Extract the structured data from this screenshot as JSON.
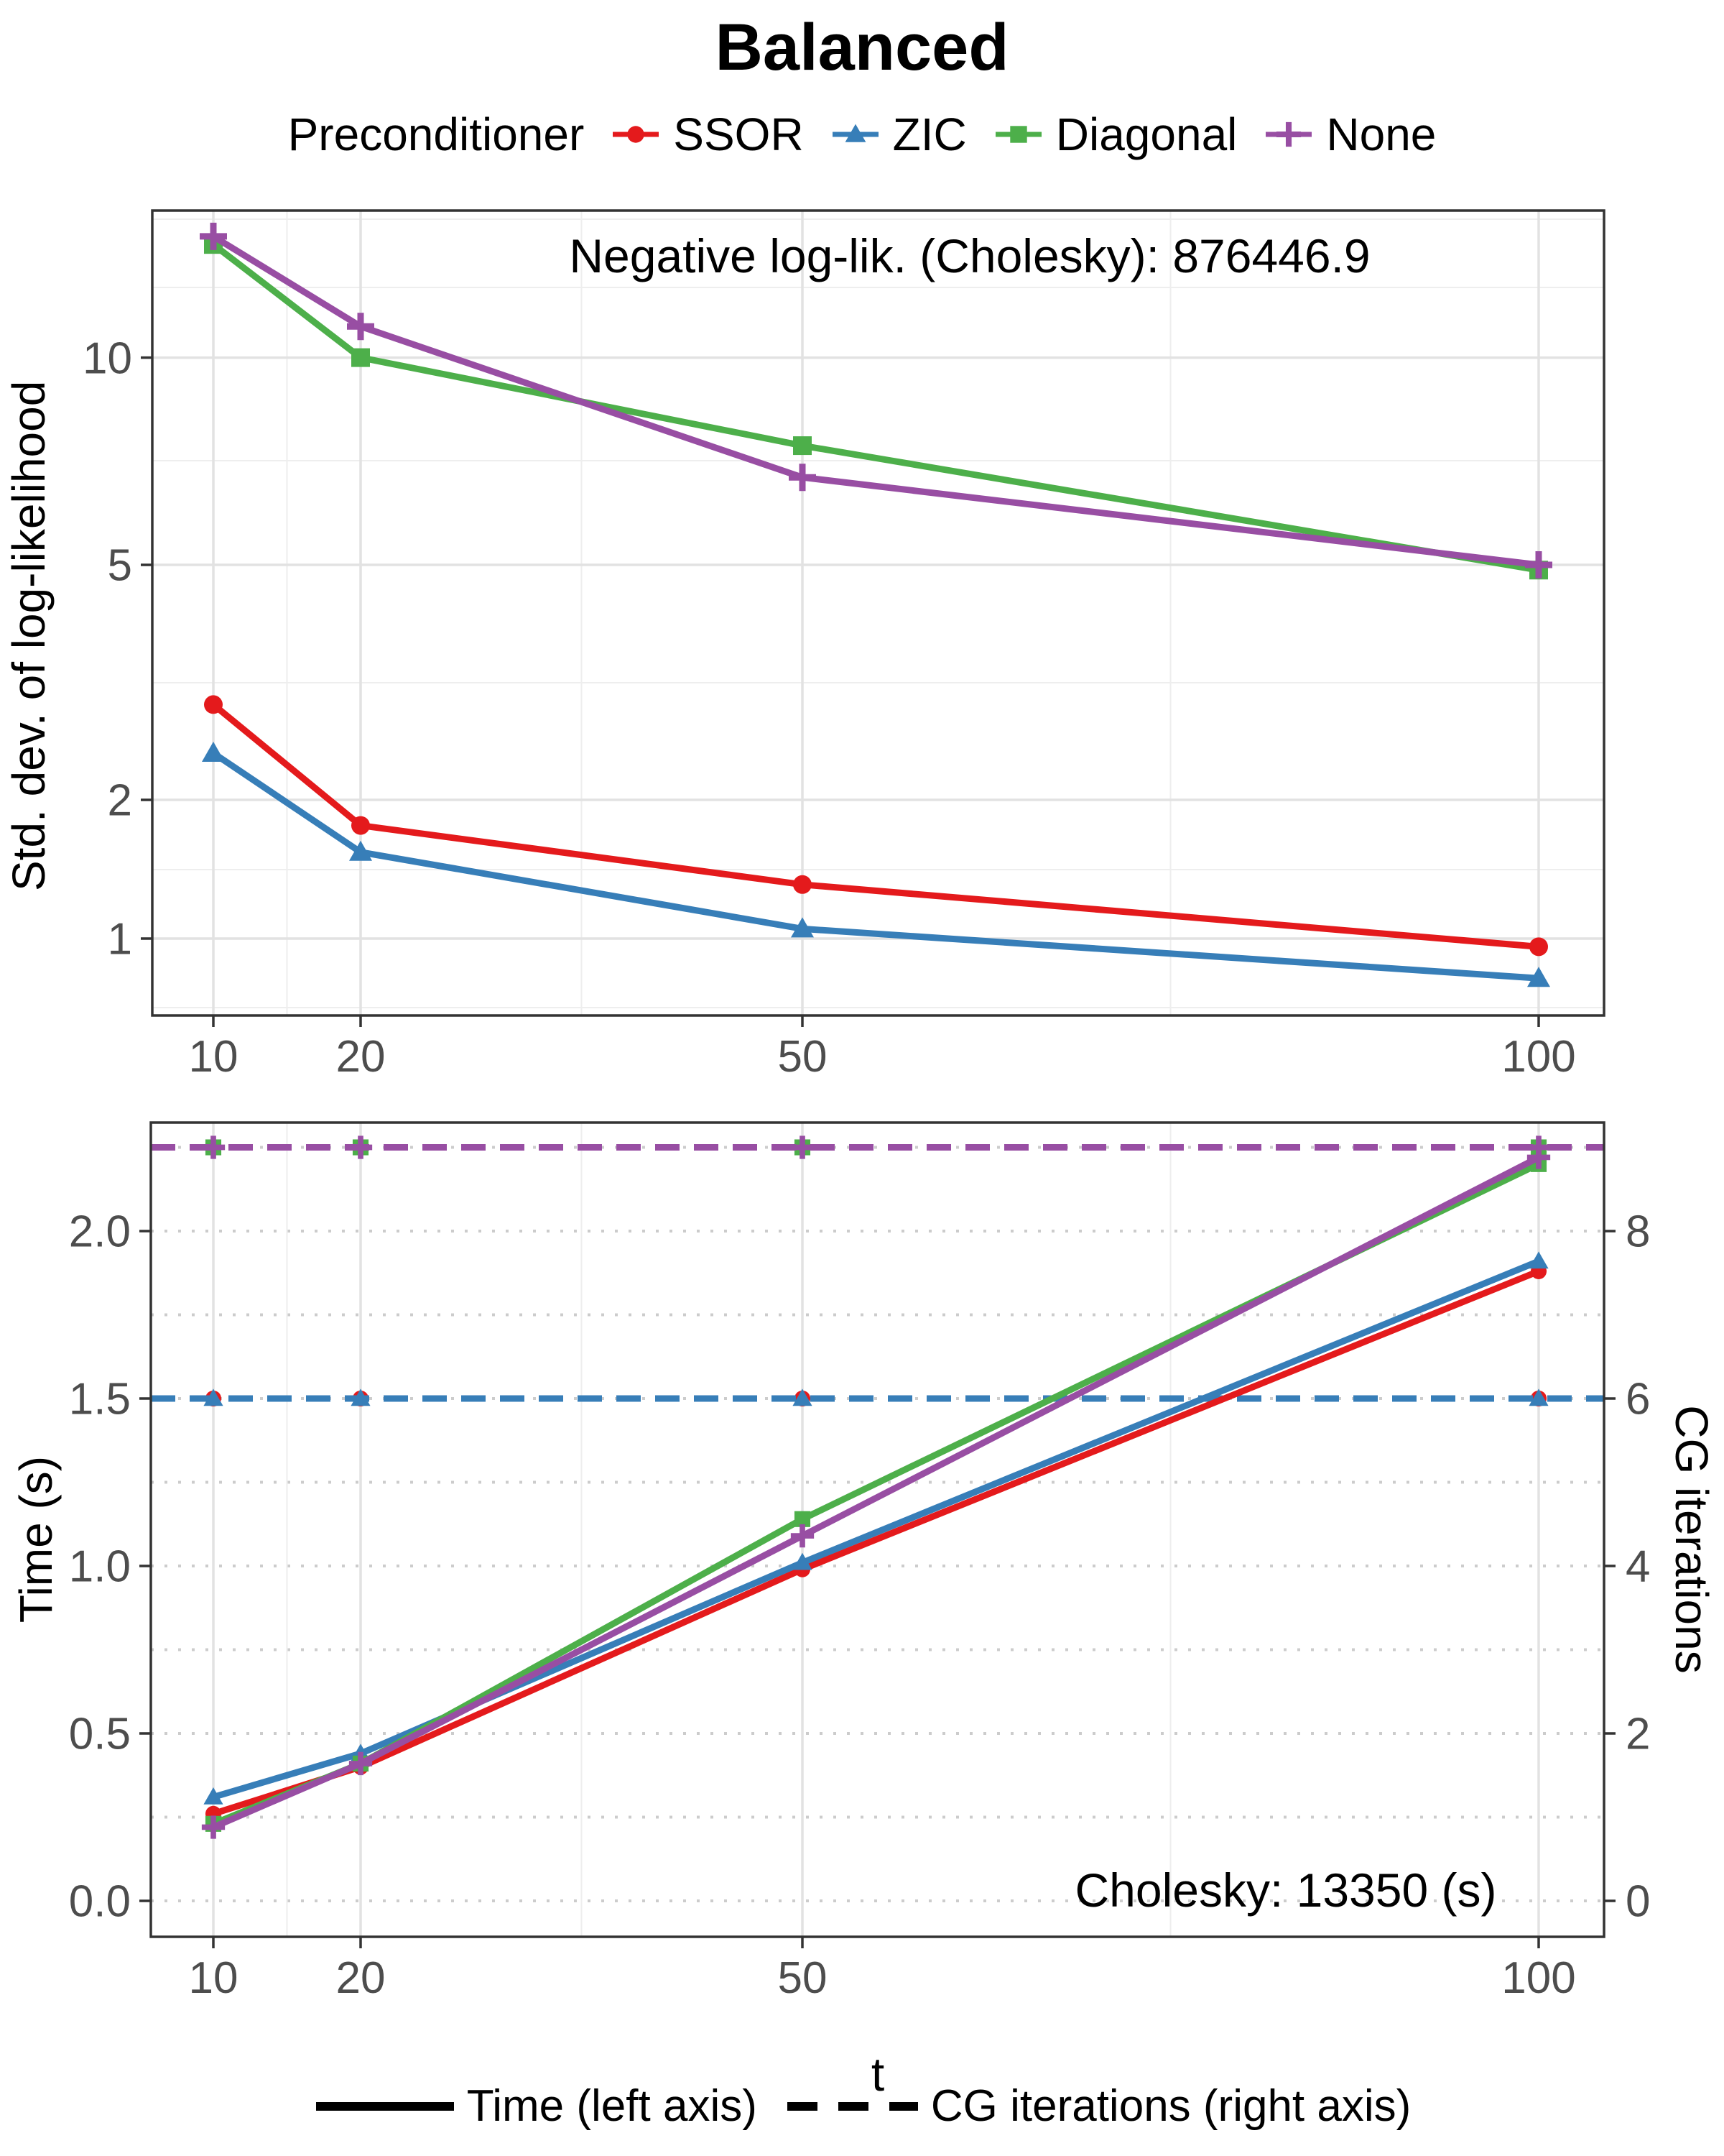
{
  "ui": {
    "title": "Balanced",
    "legend": {
      "label": "Preconditioner",
      "entries": [
        {
          "label": "SSOR",
          "color": "#E41A1C",
          "marker": "circle"
        },
        {
          "label": "ZIC",
          "color": "#377EB8",
          "marker": "triangle"
        },
        {
          "label": "Diagonal",
          "color": "#4DAF4A",
          "marker": "square"
        },
        {
          "label": "None",
          "color": "#984EA3",
          "marker": "plus"
        }
      ]
    },
    "top_panel": {
      "annotation": "Negative log-lik. (Cholesky): 876446.9",
      "ylabel": "Std. dev. of log-likelihood",
      "y_tick_labels": [
        "10",
        "5",
        "2",
        "1"
      ],
      "x_tick_labels": [
        "10",
        "20",
        "50",
        "100"
      ]
    },
    "bottom_panel": {
      "annotation": "Cholesky: 13350 (s)",
      "ylabel_left": "Time (s)",
      "ylabel_right": "CG iterations",
      "xlabel": "t",
      "left_tick_labels": [
        "0.0",
        "0.5",
        "1.0",
        "1.5",
        "2.0"
      ],
      "right_tick_labels": [
        "0",
        "2",
        "4",
        "6",
        "8"
      ],
      "x_tick_labels": [
        "10",
        "20",
        "50",
        "100"
      ],
      "legend": {
        "solid_label": "Time (left axis)",
        "dashed_label": "CG iterations (right axis)"
      }
    }
  },
  "chart_data": [
    {
      "type": "line",
      "title": "Balanced",
      "x": [
        10,
        20,
        50,
        100
      ],
      "x_ticks": [
        10,
        20,
        50,
        100
      ],
      "x_minor_ticks": [
        15,
        35,
        75
      ],
      "xlabel": "",
      "ylabel": "Std. dev. of log-likelihood",
      "yscale": "log-like",
      "y_ticks": [
        10,
        5,
        2,
        1
      ],
      "legend_title": "Preconditioner",
      "legend_position": "top",
      "grid": true,
      "annotation": "Negative log-lik. (Cholesky): 876446.9",
      "series": [
        {
          "name": "SSOR",
          "color": "#E41A1C",
          "marker": "circle",
          "values": [
            2.9,
            1.76,
            1.31,
            0.96
          ]
        },
        {
          "name": "ZIC",
          "color": "#377EB8",
          "marker": "triangle",
          "values": [
            2.4,
            1.54,
            1.05,
            0.82
          ]
        },
        {
          "name": "Diagonal",
          "color": "#4DAF4A",
          "marker": "square",
          "values": [
            14.6,
            10.0,
            7.45,
            4.9
          ]
        },
        {
          "name": "None",
          "color": "#984EA3",
          "marker": "plus",
          "values": [
            15.0,
            11.1,
            6.7,
            5.0
          ]
        }
      ]
    },
    {
      "type": "line",
      "x": [
        10,
        20,
        50,
        100
      ],
      "x_ticks": [
        10,
        20,
        50,
        100
      ],
      "x_minor_ticks": [
        15,
        35,
        75
      ],
      "xlabel": "t",
      "ylabel_left": "Time (s)",
      "ylabel_right": "CG iterations",
      "ylim_left": [
        0.0,
        2.25
      ],
      "ylim_right": [
        0,
        9
      ],
      "left_ticks": [
        0.0,
        0.5,
        1.0,
        1.5,
        2.0
      ],
      "right_ticks": [
        0,
        2,
        4,
        6,
        8
      ],
      "grid": true,
      "annotation": "Cholesky: 13350 (s)",
      "series_time": [
        {
          "name": "SSOR",
          "color": "#E41A1C",
          "marker": "circle",
          "style": "solid",
          "values": [
            0.26,
            0.4,
            0.99,
            1.88
          ]
        },
        {
          "name": "ZIC",
          "color": "#377EB8",
          "marker": "triangle",
          "style": "solid",
          "values": [
            0.31,
            0.44,
            1.01,
            1.91
          ]
        },
        {
          "name": "Diagonal",
          "color": "#4DAF4A",
          "marker": "square",
          "style": "solid",
          "values": [
            0.23,
            0.41,
            1.14,
            2.2
          ]
        },
        {
          "name": "None",
          "color": "#984EA3",
          "marker": "plus",
          "style": "solid",
          "values": [
            0.22,
            0.41,
            1.09,
            2.22
          ]
        }
      ],
      "series_cg": [
        {
          "name": "Diagonal",
          "color": "#4DAF4A",
          "marker": "square",
          "style": "dashed",
          "values": [
            9,
            9,
            9,
            9
          ]
        },
        {
          "name": "None",
          "color": "#984EA3",
          "marker": "plus",
          "style": "dashed",
          "values": [
            9,
            9,
            9,
            9
          ]
        },
        {
          "name": "SSOR",
          "color": "#E41A1C",
          "marker": "circle",
          "style": "dashed",
          "values": [
            6,
            6,
            6,
            6
          ]
        },
        {
          "name": "ZIC",
          "color": "#377EB8",
          "marker": "triangle",
          "style": "dashed",
          "values": [
            6,
            6,
            6,
            6
          ]
        }
      ],
      "line_legend": [
        {
          "style": "solid",
          "label": "Time (left axis)"
        },
        {
          "style": "dashed",
          "label": "CG iterations (right axis)"
        }
      ]
    }
  ]
}
